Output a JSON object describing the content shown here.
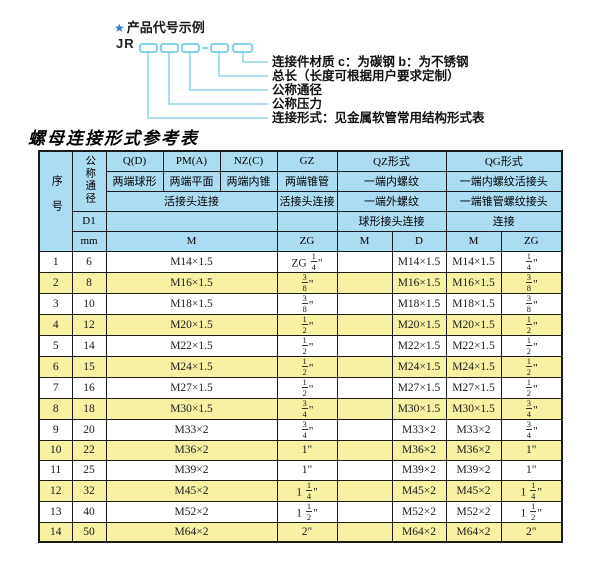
{
  "diagram": {
    "star": "★",
    "title": "产品代号示例",
    "prefix": "JR",
    "labels": [
      "连接件材质  c：为碳钢  b：为不锈钢",
      "总长（长度可根据用户要求定制）",
      "公称通径",
      "公称压力",
      "连接形式：见金属软管常用结构形式表"
    ]
  },
  "table": {
    "title": "螺母连接形式参考表",
    "header": {
      "xuhao": "序号",
      "gongcheng_tongjing": "公称通径",
      "d1": "D1",
      "mm": "mm",
      "col_q": "Q(D)",
      "col_pm": "PM(A)",
      "col_nz": "NZ(C)",
      "col_gz": "GZ",
      "col_qz": "QZ形式",
      "col_qg": "QG形式",
      "sub_q": "两端球形",
      "sub_pm": "两端平面",
      "sub_nz": "两端内锥",
      "sub_gz": "两端锥管",
      "sub_qz": "一端内螺纹",
      "sub_qg": "一端内螺纹活接头",
      "row3_left": "活接头连接",
      "row3_gz": "活接头连接",
      "row3_qz": "一端外螺纹",
      "row3_qg": "一端锥管螺纹接头",
      "row4_qz": "球形接头连接",
      "row4_qg": "连接",
      "unit_m": "M",
      "unit_zg": "ZG",
      "unit_qz_m": "M",
      "unit_qz_d": "D",
      "unit_qg_m": "M",
      "unit_qg_zg": "ZG"
    },
    "rows": [
      {
        "no": "1",
        "dn": "6",
        "m": "M14×1.5",
        "zg": "ZG 1/4\"",
        "qz_m": "",
        "qz_d": "M14×1.5",
        "qg_m": "M14×1.5",
        "qg_zg": "1/4\""
      },
      {
        "no": "2",
        "dn": "8",
        "m": "M16×1.5",
        "zg": "3/8\"",
        "qz_m": "",
        "qz_d": "M16×1.5",
        "qg_m": "M16×1.5",
        "qg_zg": "3/8\""
      },
      {
        "no": "3",
        "dn": "10",
        "m": "M18×1.5",
        "zg": "3/8\"",
        "qz_m": "",
        "qz_d": "M18×1.5",
        "qg_m": "M18×1.5",
        "qg_zg": "3/8\""
      },
      {
        "no": "4",
        "dn": "12",
        "m": "M20×1.5",
        "zg": "1/2\"",
        "qz_m": "",
        "qz_d": "M20×1.5",
        "qg_m": "M20×1.5",
        "qg_zg": "1/2\""
      },
      {
        "no": "5",
        "dn": "14",
        "m": "M22×1.5",
        "zg": "1/2\"",
        "qz_m": "",
        "qz_d": "M22×1.5",
        "qg_m": "M22×1.5",
        "qg_zg": "1/2\""
      },
      {
        "no": "6",
        "dn": "15",
        "m": "M24×1.5",
        "zg": "1/2\"",
        "qz_m": "",
        "qz_d": "M24×1.5",
        "qg_m": "M24×1.5",
        "qg_zg": "1/2\""
      },
      {
        "no": "7",
        "dn": "16",
        "m": "M27×1.5",
        "zg": "1/2\"",
        "qz_m": "",
        "qz_d": "M27×1.5",
        "qg_m": "M27×1.5",
        "qg_zg": "1/2\""
      },
      {
        "no": "8",
        "dn": "18",
        "m": "M30×1.5",
        "zg": "3/4\"",
        "qz_m": "",
        "qz_d": "M30×1.5",
        "qg_m": "M30×1.5",
        "qg_zg": "3/4\""
      },
      {
        "no": "9",
        "dn": "20",
        "m": "M33×2",
        "zg": "3/4\"",
        "qz_m": "",
        "qz_d": "M33×2",
        "qg_m": "M33×2",
        "qg_zg": "3/4\""
      },
      {
        "no": "10",
        "dn": "22",
        "m": "M36×2",
        "zg": "1\"",
        "qz_m": "",
        "qz_d": "M36×2",
        "qg_m": "M36×2",
        "qg_zg": "1\""
      },
      {
        "no": "11",
        "dn": "25",
        "m": "M39×2",
        "zg": "1\"",
        "qz_m": "",
        "qz_d": "M39×2",
        "qg_m": "M39×2",
        "qg_zg": "1\""
      },
      {
        "no": "12",
        "dn": "32",
        "m": "M45×2",
        "zg": "1 1/4\"",
        "qz_m": "",
        "qz_d": "M45×2",
        "qg_m": "M45×2",
        "qg_zg": "1 1/4\""
      },
      {
        "no": "13",
        "dn": "40",
        "m": "M52×2",
        "zg": "1 1/2\"",
        "qz_m": "",
        "qz_d": "M52×2",
        "qg_m": "M52×2",
        "qg_zg": "1 1/2\""
      },
      {
        "no": "14",
        "dn": "50",
        "m": "M64×2",
        "zg": "2\"",
        "qz_m": "",
        "qz_d": "M64×2",
        "qg_m": "M64×2",
        "qg_zg": "2\""
      }
    ]
  },
  "colors": {
    "header-bg": "#aadcf2",
    "row-alt": "#f6f1a3",
    "border": "#1b1b1b",
    "accent": "#2a7fd0",
    "line": "#7ecbe8",
    "box-border": "#5fc3dd"
  }
}
